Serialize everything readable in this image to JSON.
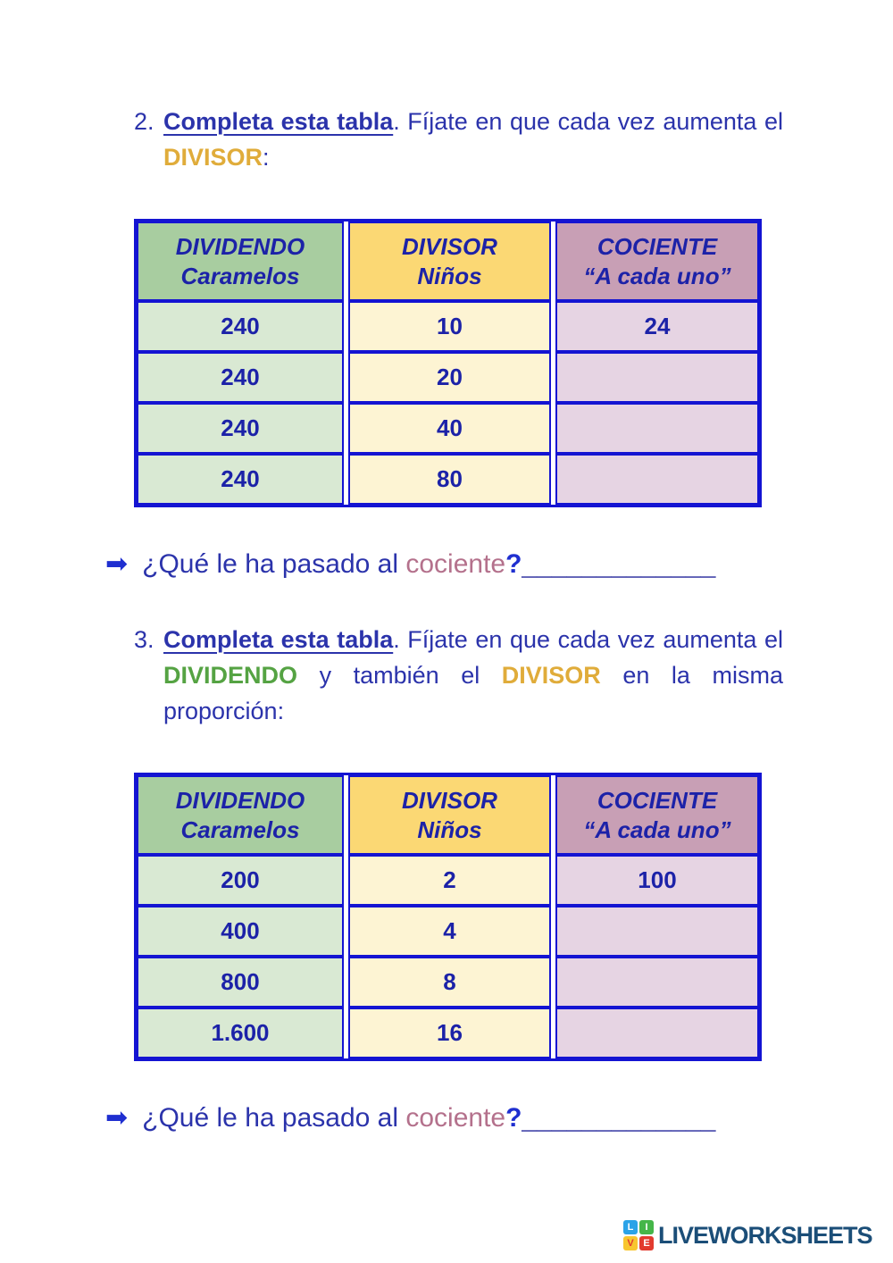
{
  "colors": {
    "blue": "#1414d2",
    "text": "#2b33ab",
    "tableText": "#1c22a8",
    "gold": "#e0ac3a",
    "green": "#55a343",
    "mauve": "#b4718c",
    "arrow": "#1f2fd0",
    "blankLine": "#5d5fb5",
    "hdrGreen": "#a8cda0",
    "hdrYellow": "#fbd874",
    "hdrMauve": "#c89fb5",
    "rowGreen": "#d9e9d3",
    "rowYellow": "#fdf4d3",
    "rowMauve": "#e6d4e3",
    "navy": "#1b4e78"
  },
  "exercise2": {
    "number": "2.",
    "segments": [
      {
        "text": "Completa esta tabla",
        "style": "bold-underline"
      },
      {
        "text": ". Fíjate en que cada vez aumenta el ",
        "style": "plain"
      },
      {
        "text": "DIVISOR",
        "style": "gold"
      },
      {
        "text": ":",
        "style": "plain"
      }
    ]
  },
  "table1": {
    "headers": [
      {
        "line1": "DIVIDENDO",
        "line2": "Caramelos"
      },
      {
        "line1": "DIVISOR",
        "line2": "Niños"
      },
      {
        "line1": "COCIENTE",
        "line2": "“A cada uno”"
      }
    ],
    "rows": [
      [
        "240",
        "10",
        "24"
      ],
      [
        "240",
        "20",
        ""
      ],
      [
        "240",
        "40",
        ""
      ],
      [
        "240",
        "80",
        ""
      ]
    ]
  },
  "question1": {
    "arrow": "➡",
    "prefix": "¿Qué le ha pasado al ",
    "highlight": "cociente",
    "qmark": "?",
    "blank": "_____________"
  },
  "exercise3": {
    "number": "3.",
    "segments": [
      {
        "text": "Completa esta tabla",
        "style": "bold-underline"
      },
      {
        "text": ". Fíjate en que cada vez aumenta el ",
        "style": "plain"
      },
      {
        "text": "DIVIDENDO",
        "style": "green"
      },
      {
        "text": " y también el ",
        "style": "plain"
      },
      {
        "text": "DIVISOR",
        "style": "gold"
      },
      {
        "text": " en la misma proporción:",
        "style": "plain"
      }
    ]
  },
  "table2": {
    "headers": [
      {
        "line1": "DIVIDENDO",
        "line2": "Caramelos"
      },
      {
        "line1": "DIVISOR",
        "line2": "Niños"
      },
      {
        "line1": "COCIENTE",
        "line2": "“A cada uno”"
      }
    ],
    "rows": [
      [
        "200",
        "2",
        "100"
      ],
      [
        "400",
        "4",
        ""
      ],
      [
        "800",
        "8",
        ""
      ],
      [
        "1.600",
        "16",
        ""
      ]
    ]
  },
  "question2": {
    "arrow": "➡",
    "prefix": "¿Qué le ha pasado al ",
    "highlight": "cociente",
    "qmark": "?",
    "blank": "_____________"
  },
  "footer": {
    "brand": "LIVEWORKSHEETS",
    "logo": [
      {
        "letter": "L",
        "bg": "#2ba3e8",
        "fg": "#ffffff"
      },
      {
        "letter": "I",
        "bg": "#45b649",
        "fg": "#ffffff"
      },
      {
        "letter": "V",
        "bg": "#f8c62f",
        "fg": "#e23b2e"
      },
      {
        "letter": "E",
        "bg": "#e23b2e",
        "fg": "#ffffff"
      }
    ]
  }
}
